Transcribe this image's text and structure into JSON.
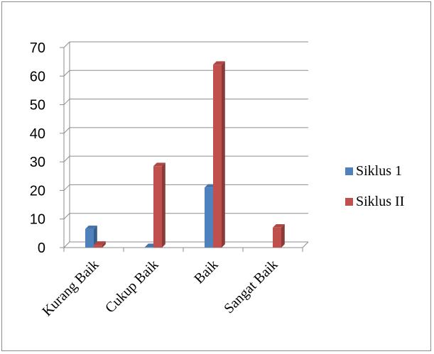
{
  "chart_data": {
    "type": "bar",
    "style": "3d-clustered-column",
    "categories": [
      "Kurang Baik",
      "Cukup Baik",
      "Baik",
      "Sangat Baik"
    ],
    "series": [
      {
        "name": "Siklus 1",
        "color": "#4f81bd",
        "values": [
          6.5,
          0.2,
          21,
          0
        ]
      },
      {
        "name": "Siklus II",
        "color": "#c0504d",
        "values": [
          1,
          28.5,
          64,
          7
        ]
      }
    ],
    "yticks": [
      "0",
      "10",
      "20",
      "30",
      "40",
      "50",
      "60",
      "70"
    ],
    "ylim": [
      0,
      70
    ],
    "grid": true,
    "legend_position": "right",
    "title": "",
    "xlabel": "",
    "ylabel": ""
  }
}
